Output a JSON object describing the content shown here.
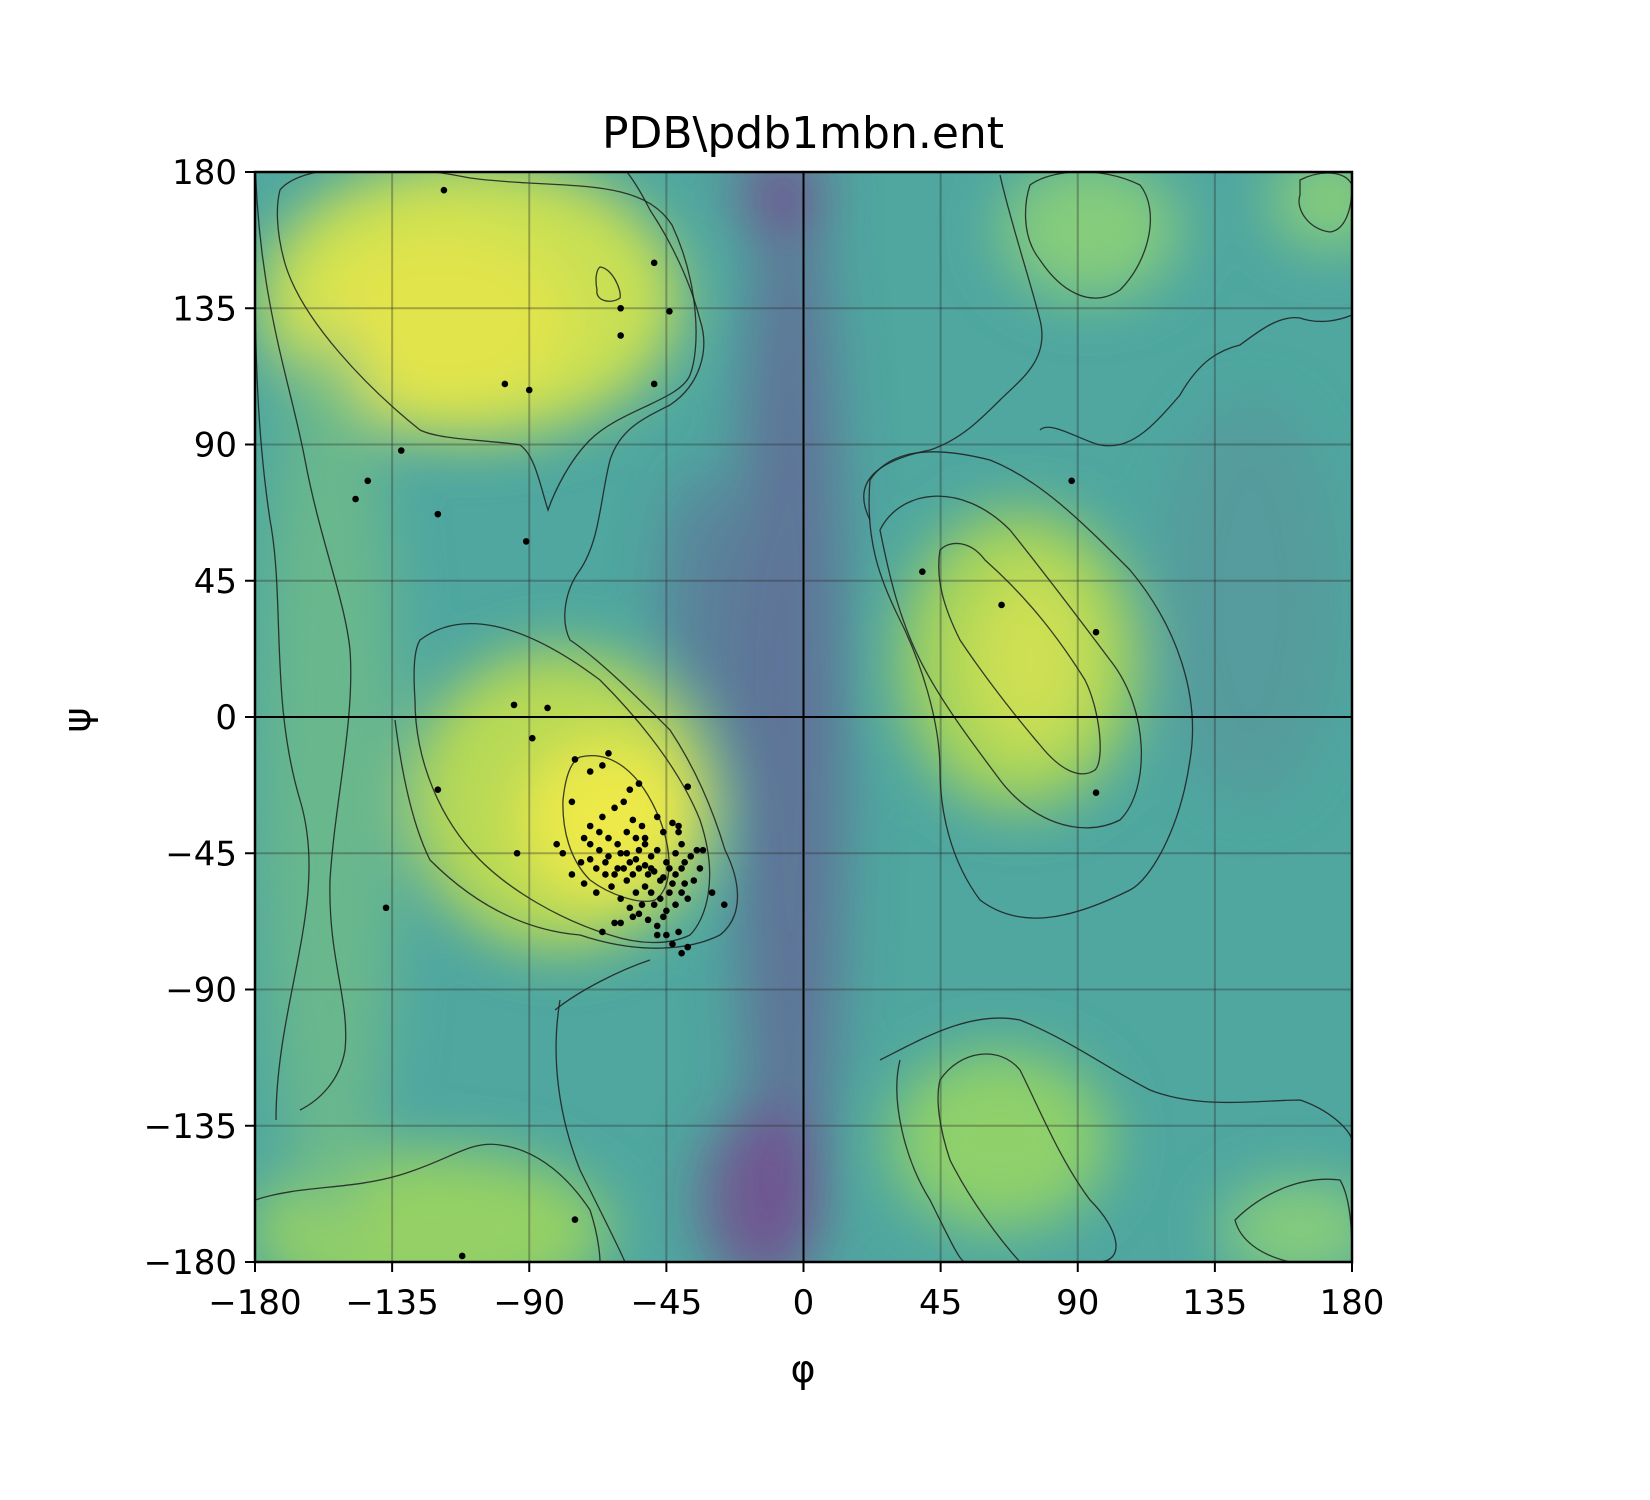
{
  "chart_data": {
    "type": "scatter",
    "title": "PDB\\pdb1mbn.ent",
    "xlabel": "φ",
    "ylabel": "ψ",
    "xlim": [
      -180,
      180
    ],
    "ylim": [
      -180,
      180
    ],
    "xticks": [
      -180,
      -135,
      -90,
      -45,
      0,
      45,
      90,
      135,
      180
    ],
    "yticks": [
      -180,
      -135,
      -90,
      -45,
      0,
      45,
      90,
      135,
      180
    ],
    "xtick_labels": [
      "−180",
      "−135",
      "−90",
      "−45",
      "0",
      "45",
      "90",
      "135",
      "180"
    ],
    "ytick_labels": [
      "−180",
      "−135",
      "−90",
      "−45",
      "0",
      "45",
      "90",
      "135",
      "180"
    ],
    "grid": true,
    "background": "density heatmap (viridis-like colormap) with contour lines",
    "colors": {
      "low": "#7b3f8c",
      "mid": "#4fa7a0",
      "high": "#e2e44c",
      "points": "#000000"
    },
    "points": [
      [
        -118,
        174
      ],
      [
        -49,
        150
      ],
      [
        -60,
        135
      ],
      [
        -44,
        134
      ],
      [
        -60,
        126
      ],
      [
        -49,
        110
      ],
      [
        -98,
        110
      ],
      [
        -90,
        108
      ],
      [
        -132,
        88
      ],
      [
        -143,
        78
      ],
      [
        -147,
        72
      ],
      [
        -120,
        67
      ],
      [
        -91,
        58
      ],
      [
        -95,
        4
      ],
      [
        -84,
        3
      ],
      [
        -89,
        -7
      ],
      [
        -120,
        -24
      ],
      [
        -94,
        -45
      ],
      [
        -137,
        -63
      ],
      [
        -75,
        -166
      ],
      [
        -112,
        -178
      ],
      [
        -75,
        -14
      ],
      [
        -70,
        -18
      ],
      [
        -66,
        -16
      ],
      [
        -64,
        -12
      ],
      [
        -76,
        -28
      ],
      [
        -66,
        -33
      ],
      [
        -70,
        -36
      ],
      [
        -72,
        -40
      ],
      [
        -62,
        -30
      ],
      [
        -59,
        -28
      ],
      [
        -57,
        -24
      ],
      [
        -54,
        -22
      ],
      [
        -58,
        -38
      ],
      [
        -55,
        -40
      ],
      [
        -52,
        -42
      ],
      [
        -50,
        -46
      ],
      [
        -48,
        -33
      ],
      [
        -46,
        -38
      ],
      [
        -43,
        -35
      ],
      [
        -41,
        -38
      ],
      [
        -38,
        -23
      ],
      [
        -44,
        -50
      ],
      [
        -47,
        -54
      ],
      [
        -52,
        -56
      ],
      [
        -55,
        -58
      ],
      [
        -58,
        -54
      ],
      [
        -61,
        -50
      ],
      [
        -64,
        -46
      ],
      [
        -67,
        -44
      ],
      [
        -70,
        -42
      ],
      [
        -73,
        -48
      ],
      [
        -76,
        -52
      ],
      [
        -79,
        -45
      ],
      [
        -81,
        -42
      ],
      [
        -60,
        -45
      ],
      [
        -57,
        -48
      ],
      [
        -54,
        -50
      ],
      [
        -51,
        -52
      ],
      [
        -48,
        -44
      ],
      [
        -45,
        -48
      ],
      [
        -42,
        -52
      ],
      [
        -39,
        -55
      ],
      [
        -37,
        -46
      ],
      [
        -35,
        -44
      ],
      [
        -63,
        -56
      ],
      [
        -60,
        -60
      ],
      [
        -57,
        -63
      ],
      [
        -54,
        -65
      ],
      [
        -51,
        -67
      ],
      [
        -48,
        -69
      ],
      [
        -45,
        -64
      ],
      [
        -42,
        -62
      ],
      [
        -40,
        -58
      ],
      [
        -38,
        -60
      ],
      [
        -50,
        -58
      ],
      [
        -53,
        -62
      ],
      [
        -56,
        -66
      ],
      [
        -60,
        -68
      ],
      [
        -65,
        -52
      ],
      [
        -68,
        -58
      ],
      [
        -72,
        -55
      ],
      [
        -58,
        -45
      ],
      [
        -55,
        -47
      ],
      [
        -52,
        -49
      ],
      [
        -49,
        -51
      ],
      [
        -46,
        -53
      ],
      [
        -43,
        -55
      ],
      [
        -40,
        -50
      ],
      [
        -61,
        -42
      ],
      [
        -64,
        -40
      ],
      [
        -67,
        -38
      ],
      [
        -70,
        -47
      ],
      [
        -45,
        -72
      ],
      [
        -43,
        -75
      ],
      [
        -40,
        -78
      ],
      [
        -38,
        -76
      ],
      [
        -41,
        -71
      ],
      [
        -48,
        -72
      ],
      [
        -62,
        -68
      ],
      [
        -66,
        -71
      ],
      [
        -30,
        -58
      ],
      [
        -26,
        -62
      ],
      [
        -33,
        -44
      ],
      [
        -56,
        -52
      ],
      [
        -54,
        -44
      ],
      [
        -52,
        -40
      ],
      [
        -50,
        -50
      ],
      [
        -47,
        -60
      ],
      [
        -44,
        -58
      ],
      [
        -42,
        -45
      ],
      [
        -40,
        -42
      ],
      [
        -39,
        -48
      ],
      [
        -41,
        -36
      ],
      [
        -53,
        -36
      ],
      [
        -56,
        -34
      ],
      [
        -59,
        -50
      ],
      [
        -62,
        -52
      ],
      [
        -65,
        -48
      ],
      [
        -68,
        -50
      ],
      [
        -49,
        -62
      ],
      [
        -46,
        -66
      ],
      [
        -36,
        -54
      ],
      [
        -34,
        -50
      ],
      [
        39,
        48
      ],
      [
        65,
        37
      ],
      [
        96,
        28
      ],
      [
        88,
        78
      ],
      [
        96,
        -25
      ]
    ],
    "contours": [
      "M 276,1120 C 276,1000 330,900 300,800 C 270,700 285,600 270,520 C 258,440 255,360 255,260",
      "M 255,155 C 258,300 290,380 305,460 C 320,540 345,600 350,650 C 355,720 335,800 330,880 C 328,960 350,1000 345,1050 C 340,1080 320,1100 300,1110",
      "M 280,190 C 300,165 380,160 470,178 C 560,190 640,175 672,225 C 700,285 700,350 690,375 C 680,400 620,410 590,440 C 570,460 555,490 548,510 C 540,485 535,455 520,445 C 490,440 440,440 420,430 C 370,390 300,320 284,260 C 276,230 276,205 280,190 Z",
      "M 600,267 C 612,268 622,290 620,298 C 610,305 595,300 597,290 C 595,280 596,270 600,267 Z",
      "M 420,640 C 460,610 520,620 600,680 C 640,720 680,770 700,820 C 720,880 705,920 690,935 C 670,945 640,945 610,935 C 560,920 510,890 480,860 C 440,820 415,760 415,700 C 413,670 414,650 420,640 Z",
      "M 580,757 C 610,750 640,770 660,820 C 675,860 670,890 655,900 C 640,905 610,895 590,880 C 570,860 562,830 563,800 C 565,780 570,762 580,757 Z",
      "M 395,720 C 400,760 410,820 430,860 C 470,900 520,930 580,935 C 640,955 690,950 720,935 C 745,915 740,880 725,850 C 710,800 690,760 670,730 C 640,700 600,660 570,640 C 560,620 565,590 580,570 C 600,540 600,500 610,460 C 620,430 640,420 670,405 C 700,385 710,350 700,320 C 690,280 670,240 650,210 C 640,190 630,175 625,170",
      "M 880,530 C 900,490 960,480 1010,530 C 1050,580 1080,620 1110,660 C 1150,710 1150,790 1120,820 C 1080,840 1030,820 1000,780 C 970,740 940,700 920,660 C 900,620 890,580 880,530 Z",
      "M 940,550 C 950,540 970,540 985,560 C 1030,600 1060,640 1085,680 C 1100,710 1105,760 1095,770 C 1080,780 1060,770 1040,745 C 1010,710 980,670 960,640 C 945,610 935,580 940,550 Z",
      "M 870,480 C 890,450 930,445 990,460 C 1040,480 1080,520 1130,570 C 1180,630 1200,700 1190,760 C 1180,830 1150,880 1130,890 C 1070,920 1020,930 980,900 C 950,860 940,810 940,770 C 940,720 920,660 900,620 C 880,580 865,540 870,480 Z",
      "M 1040,430 C 1050,420 1080,440 1100,445 C 1130,450 1150,430 1180,395 C 1200,360 1220,350 1240,345 C 1260,330 1280,315 1300,318 C 1320,325 1340,320 1352,315",
      "M 1000,175 C 1010,220 1030,280 1040,320 C 1050,360 1020,380 1000,400 C 980,420 960,440 930,450 C 880,460 850,480 870,520",
      "M 1030,185 C 1050,170 1100,165 1140,185 C 1160,210 1150,260 1120,290 C 1090,310 1060,290 1040,260 C 1020,235 1025,200 1030,185 Z",
      "M 1300,180 C 1320,170 1345,170 1352,185 C 1352,210 1345,230 1330,232 C 1310,230 1295,210 1300,195 Z",
      "M 880,1060 C 920,1040 970,1010 1020,1020 C 1070,1040 1110,1070 1150,1090 C 1200,1110 1260,1100 1300,1100 C 1330,1110 1350,1130 1352,1140",
      "M 1235,1220 C 1260,1195 1300,1175 1340,1180 C 1352,1200 1352,1240 1352,1262 L 1290,1262 C 1260,1255 1240,1240 1235,1220 Z",
      "M 940,1080 C 960,1050 1000,1045 1020,1070 C 1040,1110 1060,1160 1090,1200 C 1120,1230 1125,1260 1100,1262 L 1020,1262 C 1000,1240 970,1200 950,1160 C 940,1130 935,1100 940,1080 Z",
      "M 900,1060 C 890,1100 905,1160 930,1200 C 950,1240 960,1262 965,1262",
      "M 255,1200 C 300,1185 350,1190 400,1175 C 450,1160 470,1140 500,1145 C 540,1150 570,1180 590,1210 C 600,1240 600,1262 600,1262",
      "M 555,1010 C 580,990 620,970 650,960",
      "M 560,1000 C 550,1060 560,1120 580,1170 C 600,1210 620,1250 625,1262"
    ]
  }
}
